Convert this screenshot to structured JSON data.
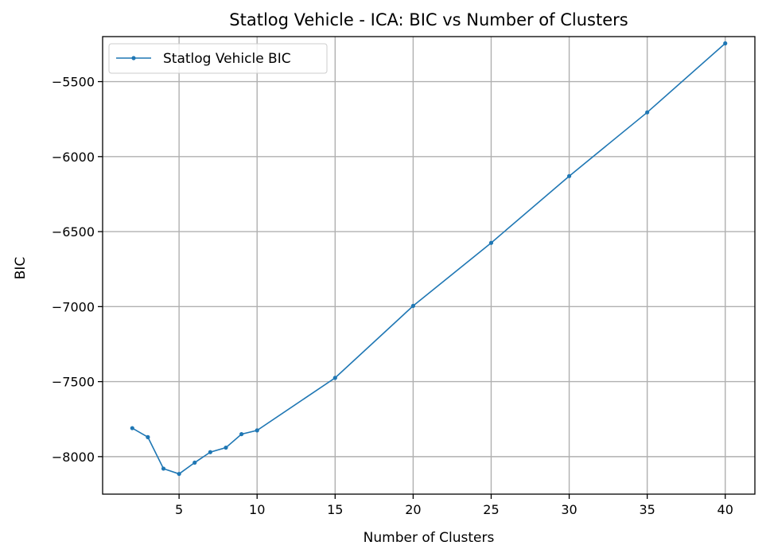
{
  "chart_data": {
    "type": "line",
    "title": "Statlog Vehicle - ICA: BIC vs Number of Clusters",
    "xlabel": "Number of Clusters",
    "ylabel": "BIC",
    "xlim": [
      0.1,
      41.9
    ],
    "ylim": [
      -8250,
      -5200
    ],
    "xticks": [
      5,
      10,
      15,
      20,
      25,
      30,
      35,
      40
    ],
    "yticks": [
      -8000,
      -7500,
      -7000,
      -6500,
      -6000,
      -5500
    ],
    "ytick_labels": [
      "−8000",
      "−7500",
      "−7000",
      "−6500",
      "−6000",
      "−5500"
    ],
    "grid": true,
    "legend_position": "top-left",
    "series": [
      {
        "name": "Statlog Vehicle BIC",
        "color": "#1f77b4",
        "marker": "dot",
        "x": [
          2,
          3,
          4,
          5,
          6,
          7,
          8,
          9,
          10,
          15,
          20,
          25,
          30,
          35,
          40
        ],
        "y": [
          -7810,
          -7870,
          -8080,
          -8115,
          -8040,
          -7970,
          -7940,
          -7850,
          -7825,
          -7475,
          -6995,
          -6575,
          -6130,
          -5705,
          -5245
        ]
      }
    ]
  }
}
